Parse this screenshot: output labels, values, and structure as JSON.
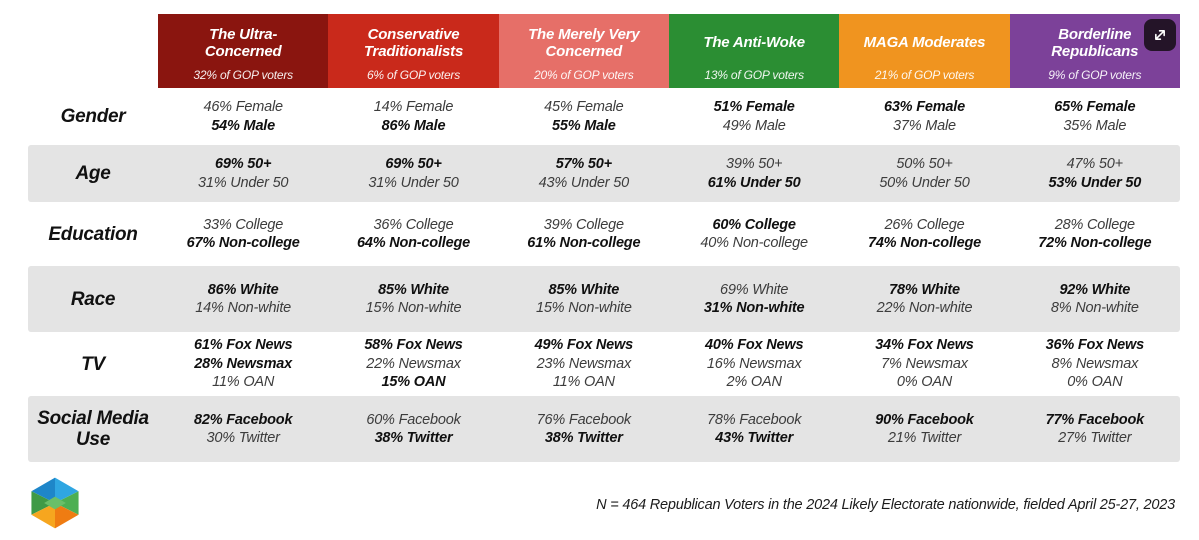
{
  "chart_data": {
    "type": "table",
    "columns": [
      {
        "title": "The Ultra-Concerned",
        "subtitle": "32% of GOP voters",
        "color": "#8a150f"
      },
      {
        "title": "Conservative Traditionalists",
        "subtitle": "6% of GOP voters",
        "color": "#c9291b"
      },
      {
        "title": "The Merely Very Concerned",
        "subtitle": "20% of GOP voters",
        "color": "#e66f68"
      },
      {
        "title": "The Anti-Woke",
        "subtitle": "13% of GOP voters",
        "color": "#2b8e33"
      },
      {
        "title": "MAGA Moderates",
        "subtitle": "21% of GOP voters",
        "color": "#f0941f"
      },
      {
        "title": "Borderline Republicans",
        "subtitle": "9% of GOP voters",
        "color": "#7c4199"
      }
    ],
    "rows": [
      {
        "label": "Gender",
        "cells": [
          [
            {
              "text": "46% Female",
              "bold": false
            },
            {
              "text": "54% Male",
              "bold": true
            }
          ],
          [
            {
              "text": "14% Female",
              "bold": false
            },
            {
              "text": "86% Male",
              "bold": true
            }
          ],
          [
            {
              "text": "45% Female",
              "bold": false
            },
            {
              "text": "55% Male",
              "bold": true
            }
          ],
          [
            {
              "text": "51% Female",
              "bold": true
            },
            {
              "text": "49% Male",
              "bold": false
            }
          ],
          [
            {
              "text": "63% Female",
              "bold": true
            },
            {
              "text": "37% Male",
              "bold": false
            }
          ],
          [
            {
              "text": "65% Female",
              "bold": true
            },
            {
              "text": "35% Male",
              "bold": false
            }
          ]
        ]
      },
      {
        "label": "Age",
        "cells": [
          [
            {
              "text": "69% 50+",
              "bold": true
            },
            {
              "text": "31% Under 50",
              "bold": false
            }
          ],
          [
            {
              "text": "69% 50+",
              "bold": true
            },
            {
              "text": "31% Under 50",
              "bold": false
            }
          ],
          [
            {
              "text": "57% 50+",
              "bold": true
            },
            {
              "text": "43% Under 50",
              "bold": false
            }
          ],
          [
            {
              "text": "39% 50+",
              "bold": false
            },
            {
              "text": "61% Under 50",
              "bold": true
            }
          ],
          [
            {
              "text": "50% 50+",
              "bold": false
            },
            {
              "text": "50% Under 50",
              "bold": false
            }
          ],
          [
            {
              "text": "47% 50+",
              "bold": false
            },
            {
              "text": "53% Under 50",
              "bold": true
            }
          ]
        ]
      },
      {
        "label": "Education",
        "cells": [
          [
            {
              "text": "33% College",
              "bold": false
            },
            {
              "text": "67% Non-college",
              "bold": true
            }
          ],
          [
            {
              "text": "36% College",
              "bold": false
            },
            {
              "text": "64% Non-college",
              "bold": true
            }
          ],
          [
            {
              "text": "39% College",
              "bold": false
            },
            {
              "text": "61% Non-college",
              "bold": true
            }
          ],
          [
            {
              "text": "60% College",
              "bold": true
            },
            {
              "text": "40% Non-college",
              "bold": false
            }
          ],
          [
            {
              "text": "26% College",
              "bold": false
            },
            {
              "text": "74% Non-college",
              "bold": true
            }
          ],
          [
            {
              "text": "28% College",
              "bold": false
            },
            {
              "text": "72% Non-college",
              "bold": true
            }
          ]
        ]
      },
      {
        "label": "Race",
        "cells": [
          [
            {
              "text": "86% White",
              "bold": true
            },
            {
              "text": "14% Non-white",
              "bold": false
            }
          ],
          [
            {
              "text": "85% White",
              "bold": true
            },
            {
              "text": "15% Non-white",
              "bold": false
            }
          ],
          [
            {
              "text": "85% White",
              "bold": true
            },
            {
              "text": "15% Non-white",
              "bold": false
            }
          ],
          [
            {
              "text": "69% White",
              "bold": false
            },
            {
              "text": "31% Non-white",
              "bold": true
            }
          ],
          [
            {
              "text": "78% White",
              "bold": true
            },
            {
              "text": "22% Non-white",
              "bold": false
            }
          ],
          [
            {
              "text": "92% White",
              "bold": true
            },
            {
              "text": "8% Non-white",
              "bold": false
            }
          ]
        ]
      },
      {
        "label": "TV",
        "cells": [
          [
            {
              "text": "61% Fox News",
              "bold": true
            },
            {
              "text": "28% Newsmax",
              "bold": true
            },
            {
              "text": "11% OAN",
              "bold": false
            }
          ],
          [
            {
              "text": "58% Fox News",
              "bold": true
            },
            {
              "text": "22% Newsmax",
              "bold": false
            },
            {
              "text": "15% OAN",
              "bold": true
            }
          ],
          [
            {
              "text": "49% Fox News",
              "bold": true
            },
            {
              "text": "23% Newsmax",
              "bold": false
            },
            {
              "text": "11% OAN",
              "bold": false
            }
          ],
          [
            {
              "text": "40% Fox News",
              "bold": true
            },
            {
              "text": "16% Newsmax",
              "bold": false
            },
            {
              "text": "2% OAN",
              "bold": false
            }
          ],
          [
            {
              "text": "34% Fox News",
              "bold": true
            },
            {
              "text": "7% Newsmax",
              "bold": false
            },
            {
              "text": "0% OAN",
              "bold": false
            }
          ],
          [
            {
              "text": "36% Fox News",
              "bold": true
            },
            {
              "text": "8% Newsmax",
              "bold": false
            },
            {
              "text": "0% OAN",
              "bold": false
            }
          ]
        ]
      },
      {
        "label": "Social Media Use",
        "cells": [
          [
            {
              "text": "82% Facebook",
              "bold": true
            },
            {
              "text": "30% Twitter",
              "bold": false
            }
          ],
          [
            {
              "text": "60% Facebook",
              "bold": false
            },
            {
              "text": "38% Twitter",
              "bold": true
            }
          ],
          [
            {
              "text": "76% Facebook",
              "bold": false
            },
            {
              "text": "38% Twitter",
              "bold": true
            }
          ],
          [
            {
              "text": "78% Facebook",
              "bold": false
            },
            {
              "text": "43% Twitter",
              "bold": true
            }
          ],
          [
            {
              "text": "90% Facebook",
              "bold": true
            },
            {
              "text": "21% Twitter",
              "bold": false
            }
          ],
          [
            {
              "text": "77% Facebook",
              "bold": true
            },
            {
              "text": "27% Twitter",
              "bold": false
            }
          ]
        ]
      }
    ],
    "layout": {
      "stripe_color": "#e4e4e4",
      "striped_rows": [
        "Age",
        "Race",
        "Social Media Use"
      ]
    }
  },
  "footer": {
    "note": "N = 464 Republican Voters in the 2024 Likely Electorate nationwide, fielded April 25-27, 2023"
  },
  "icons": {
    "expand": "expand-icon",
    "logo": "hexagon-logo"
  }
}
